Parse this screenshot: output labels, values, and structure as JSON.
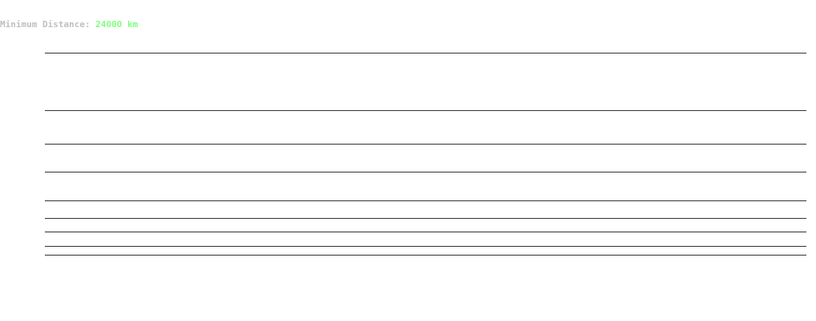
{
  "header": {
    "label": "Minimum Distance:",
    "value": "24000 km",
    "value_color": "#80ff80"
  }
}
